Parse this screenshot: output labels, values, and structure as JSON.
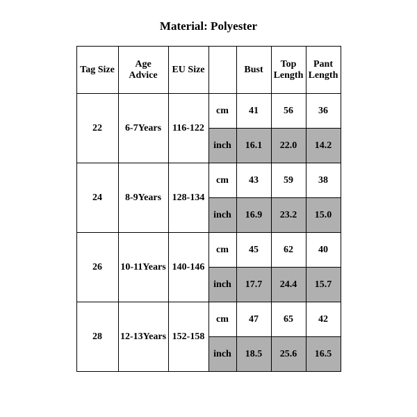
{
  "title": "Material: Polyester",
  "colors": {
    "background": "#ffffff",
    "text": "#000000",
    "border": "#000000",
    "shaded": "#b0b0b0"
  },
  "table": {
    "headers": {
      "tag_size": "Tag Size",
      "age_advice": "Age Advice",
      "eu_size": "EU Size",
      "unit_blank": "",
      "bust": "Bust",
      "top_length": "Top Length",
      "pant_length": "Pant Length"
    },
    "unit_cm": "cm",
    "unit_inch": "inch",
    "rows": [
      {
        "tag": "22",
        "age": "6-7Years",
        "eu": "116-122",
        "cm": {
          "bust": "41",
          "top": "56",
          "pant": "36"
        },
        "inch": {
          "bust": "16.1",
          "top": "22.0",
          "pant": "14.2"
        }
      },
      {
        "tag": "24",
        "age": "8-9Years",
        "eu": "128-134",
        "cm": {
          "bust": "43",
          "top": "59",
          "pant": "38"
        },
        "inch": {
          "bust": "16.9",
          "top": "23.2",
          "pant": "15.0"
        }
      },
      {
        "tag": "26",
        "age": "10-11Years",
        "eu": "140-146",
        "cm": {
          "bust": "45",
          "top": "62",
          "pant": "40"
        },
        "inch": {
          "bust": "17.7",
          "top": "24.4",
          "pant": "15.7"
        }
      },
      {
        "tag": "28",
        "age": "12-13Years",
        "eu": "152-158",
        "cm": {
          "bust": "47",
          "top": "65",
          "pant": "42"
        },
        "inch": {
          "bust": "18.5",
          "top": "25.6",
          "pant": "16.5"
        }
      }
    ]
  }
}
